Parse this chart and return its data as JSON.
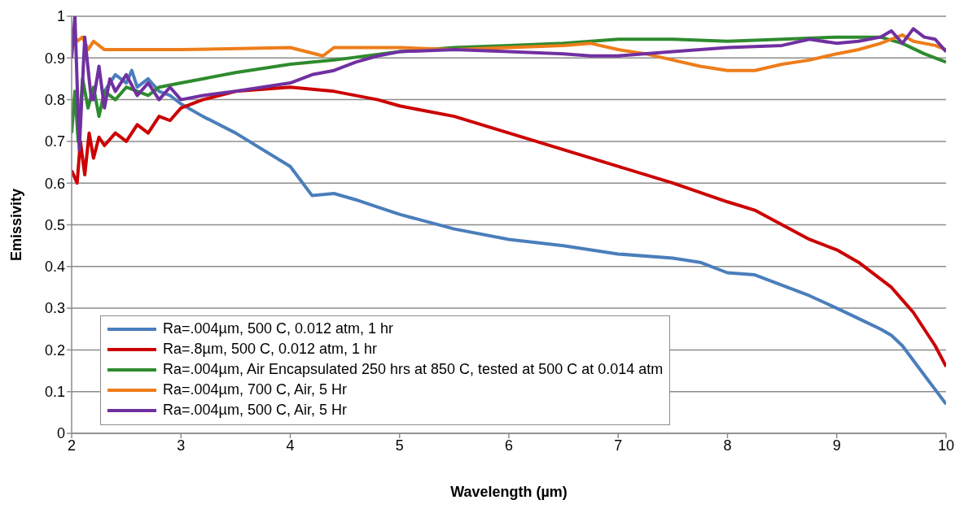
{
  "chart_data": {
    "type": "line",
    "xlabel": "Wavelength (µm)",
    "ylabel": "Emissivity",
    "xlim": [
      2,
      10
    ],
    "ylim": [
      0,
      1
    ],
    "xticks": [
      2,
      3,
      4,
      5,
      6,
      7,
      8,
      9,
      10
    ],
    "yticks": [
      0,
      0.1,
      0.2,
      0.3,
      0.4,
      0.5,
      0.6,
      0.7,
      0.8,
      0.9,
      1
    ],
    "grid": "y",
    "legend": "bottom left",
    "marker": "none",
    "line_style": "solid",
    "series": [
      {
        "name": "Ra=.004µm, 500 C, 0.012 atm, 1 hr",
        "color": "#4a7ebb",
        "x": [
          2.3,
          2.4,
          2.5,
          2.55,
          2.6,
          2.7,
          2.8,
          2.9,
          3.0,
          3.2,
          3.5,
          4.0,
          4.2,
          4.4,
          4.6,
          5.0,
          5.5,
          6.0,
          6.5,
          7.0,
          7.5,
          7.75,
          8.0,
          8.25,
          8.5,
          8.75,
          9.0,
          9.2,
          9.4,
          9.5,
          9.6,
          9.7,
          9.8,
          9.9,
          10.0
        ],
        "values": [
          0.82,
          0.86,
          0.84,
          0.87,
          0.83,
          0.85,
          0.82,
          0.81,
          0.79,
          0.76,
          0.72,
          0.64,
          0.57,
          0.575,
          0.56,
          0.525,
          0.49,
          0.465,
          0.45,
          0.43,
          0.42,
          0.41,
          0.385,
          0.38,
          0.355,
          0.33,
          0.3,
          0.275,
          0.25,
          0.235,
          0.21,
          0.175,
          0.14,
          0.105,
          0.07
        ]
      },
      {
        "name": "Ra=.8µm, 500 C, 0.012 atm, 1 hr",
        "color": "#cc0000",
        "x": [
          2.0,
          2.05,
          2.08,
          2.12,
          2.16,
          2.2,
          2.25,
          2.3,
          2.4,
          2.5,
          2.6,
          2.7,
          2.8,
          2.9,
          3.0,
          3.2,
          3.5,
          4.0,
          4.4,
          4.8,
          5.0,
          5.5,
          6.0,
          6.25,
          6.5,
          7.0,
          7.5,
          8.0,
          8.25,
          8.5,
          8.75,
          9.0,
          9.2,
          9.4,
          9.5,
          9.6,
          9.7,
          9.8,
          9.9,
          10.0
        ],
        "values": [
          0.63,
          0.6,
          0.7,
          0.62,
          0.72,
          0.66,
          0.71,
          0.69,
          0.72,
          0.7,
          0.74,
          0.72,
          0.76,
          0.75,
          0.78,
          0.8,
          0.82,
          0.83,
          0.82,
          0.8,
          0.785,
          0.76,
          0.72,
          0.7,
          0.68,
          0.64,
          0.6,
          0.555,
          0.535,
          0.5,
          0.465,
          0.44,
          0.41,
          0.37,
          0.35,
          0.32,
          0.29,
          0.25,
          0.21,
          0.16
        ]
      },
      {
        "name": "Ra=.004µm, Air Encapsulated 250 hrs at 850 C, tested at 500 C at 0.014 atm",
        "color": "#2e8b2e",
        "x": [
          2.0,
          2.03,
          2.06,
          2.1,
          2.15,
          2.2,
          2.25,
          2.3,
          2.4,
          2.5,
          2.7,
          2.8,
          3.0,
          3.2,
          3.5,
          4.0,
          4.4,
          5.0,
          5.5,
          6.0,
          6.5,
          7.0,
          7.5,
          8.0,
          8.5,
          9.0,
          9.4,
          9.6,
          9.8,
          10.0
        ],
        "values": [
          0.72,
          0.82,
          0.7,
          0.85,
          0.78,
          0.83,
          0.76,
          0.82,
          0.8,
          0.83,
          0.81,
          0.83,
          0.84,
          0.85,
          0.865,
          0.885,
          0.895,
          0.915,
          0.925,
          0.93,
          0.935,
          0.945,
          0.945,
          0.94,
          0.945,
          0.95,
          0.95,
          0.935,
          0.91,
          0.89
        ]
      },
      {
        "name": "Ra=.004µm, 700 C, Air, 5 Hr",
        "color": "#ed7d1a",
        "x": [
          2.0,
          2.05,
          2.1,
          2.15,
          2.2,
          2.3,
          2.5,
          3.0,
          4.0,
          4.3,
          4.4,
          5.0,
          5.5,
          6.0,
          6.5,
          6.75,
          7.0,
          7.25,
          7.5,
          7.75,
          8.0,
          8.25,
          8.5,
          8.75,
          9.0,
          9.2,
          9.4,
          9.5,
          9.6,
          9.7,
          9.8,
          9.9,
          10.0
        ],
        "values": [
          0.97,
          0.94,
          0.95,
          0.92,
          0.94,
          0.92,
          0.92,
          0.92,
          0.925,
          0.905,
          0.925,
          0.925,
          0.92,
          0.925,
          0.93,
          0.935,
          0.92,
          0.91,
          0.895,
          0.88,
          0.87,
          0.87,
          0.885,
          0.895,
          0.91,
          0.92,
          0.935,
          0.945,
          0.955,
          0.94,
          0.935,
          0.93,
          0.92
        ]
      },
      {
        "name": "Ra=.004µm, 500 C, Air, 5 Hr",
        "color": "#7030a0",
        "x": [
          2.0,
          2.03,
          2.07,
          2.12,
          2.18,
          2.2,
          2.25,
          2.3,
          2.35,
          2.4,
          2.5,
          2.6,
          2.7,
          2.8,
          2.9,
          3.0,
          3.2,
          3.5,
          4.0,
          4.2,
          4.4,
          4.6,
          4.8,
          5.0,
          5.5,
          6.0,
          6.5,
          6.75,
          7.0,
          7.5,
          7.75,
          8.0,
          8.5,
          8.75,
          9.0,
          9.2,
          9.4,
          9.5,
          9.6,
          9.7,
          9.8,
          9.9,
          10.0
        ],
        "values": [
          0.9,
          1.0,
          0.68,
          0.95,
          0.8,
          0.8,
          0.88,
          0.78,
          0.85,
          0.82,
          0.86,
          0.81,
          0.84,
          0.8,
          0.83,
          0.8,
          0.81,
          0.82,
          0.84,
          0.86,
          0.87,
          0.89,
          0.905,
          0.915,
          0.92,
          0.915,
          0.91,
          0.905,
          0.905,
          0.915,
          0.92,
          0.925,
          0.93,
          0.945,
          0.935,
          0.94,
          0.95,
          0.965,
          0.935,
          0.97,
          0.95,
          0.945,
          0.915
        ]
      }
    ]
  }
}
